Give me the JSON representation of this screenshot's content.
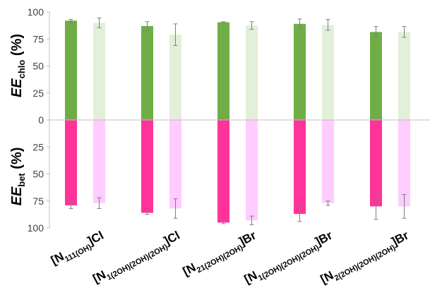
{
  "chart_data": {
    "type": "bar",
    "categories": [
      {
        "main": "[N",
        "sub": "111(OH)",
        "tail": "]Cl"
      },
      {
        "main": "[N",
        "sub": "1(2OH)(2OH)(2OH)",
        "tail": "]Cl"
      },
      {
        "main": "[N",
        "sub": "21(2OH)(2OH)",
        "tail": "]Br"
      },
      {
        "main": "[N",
        "sub": "1(2OH)(2OH)(2OH)",
        "tail": "]Br"
      },
      {
        "main": "[N",
        "sub": "2(2OH)(2OH)(2OH)",
        "tail": "]Br"
      }
    ],
    "top_axis": {
      "label_main": "EE",
      "label_sub": "chlo",
      "label_tail": " (%)",
      "ylim": [
        0,
        100
      ],
      "ticks": [
        "0",
        "25",
        "50",
        "75",
        "100"
      ]
    },
    "bottom_axis": {
      "label_main": "EE",
      "label_sub": "bet",
      "label_tail": " (%)",
      "ylim": [
        0,
        100
      ],
      "ticks": [
        "25",
        "50",
        "75",
        "100"
      ]
    },
    "top_series": [
      {
        "color": "#70ad47",
        "values": [
          92,
          87,
          90.5,
          89,
          81.5
        ],
        "errors": [
          1.2,
          4,
          0.5,
          4.5,
          5
        ]
      },
      {
        "color": "#e2f0d9",
        "values": [
          90,
          79,
          87.5,
          88,
          81.5
        ],
        "errors": [
          4.5,
          10,
          3.5,
          5,
          5
        ]
      }
    ],
    "bottom_series": [
      {
        "color": "#ff3399",
        "values": [
          79,
          86,
          95,
          87,
          80
        ],
        "errors": [
          3,
          1.5,
          1,
          7,
          12
        ]
      },
      {
        "color": "#ffccff",
        "values": [
          77,
          82,
          93,
          77,
          80
        ],
        "errors": [
          5,
          9,
          4,
          2,
          11
        ]
      }
    ],
    "grid": false,
    "legend": "none"
  }
}
